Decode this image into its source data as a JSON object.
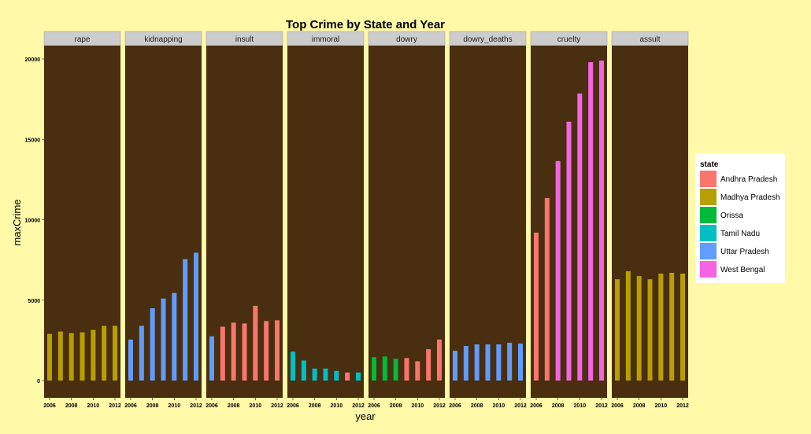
{
  "chart_data": {
    "type": "bar",
    "title": "Top Crime by State and Year",
    "xlabel": "year",
    "ylabel": "maxCrime",
    "ylim": [
      0,
      20000
    ],
    "yticks": [
      0,
      5000,
      10000,
      15000,
      20000
    ],
    "ytick_labels": [
      "0",
      "5000",
      "10000",
      "15000",
      "20000"
    ],
    "x": [
      2006,
      2007,
      2008,
      2009,
      2010,
      2011,
      2012
    ],
    "xticks": [
      2006,
      2008,
      2010,
      2012
    ],
    "xtick_labels": [
      "2006",
      "2008",
      "2010",
      "2012"
    ],
    "legend": {
      "title": "state",
      "placement": "right",
      "entries": [
        {
          "name": "Andhra Pradesh",
          "color": "#f8766d"
        },
        {
          "name": "Madhya Pradesh",
          "color": "#b79f00"
        },
        {
          "name": "Orissa",
          "color": "#00ba38"
        },
        {
          "name": "Tamil Nadu",
          "color": "#00bfc4"
        },
        {
          "name": "Uttar Pradesh",
          "color": "#619cff"
        },
        {
          "name": "West Bengal",
          "color": "#f564e3"
        }
      ]
    },
    "panel_background": "#4a2e10",
    "strip_background": "#cccccc",
    "panels": [
      {
        "crime": "rape",
        "values": [
          2900,
          3050,
          2950,
          3000,
          3150,
          3400,
          3400
        ],
        "states": [
          "Madhya Pradesh",
          "Madhya Pradesh",
          "Madhya Pradesh",
          "Madhya Pradesh",
          "Madhya Pradesh",
          "Madhya Pradesh",
          "Madhya Pradesh"
        ]
      },
      {
        "crime": "kidnapping",
        "values": [
          2550,
          3400,
          4500,
          5100,
          5450,
          7550,
          7950
        ],
        "states": [
          "Uttar Pradesh",
          "Uttar Pradesh",
          "Uttar Pradesh",
          "Uttar Pradesh",
          "Uttar Pradesh",
          "Uttar Pradesh",
          "Uttar Pradesh"
        ]
      },
      {
        "crime": "insult",
        "values": [
          2750,
          3350,
          3600,
          3550,
          4650,
          3700,
          3750
        ],
        "states": [
          "Uttar Pradesh",
          "Andhra Pradesh",
          "Andhra Pradesh",
          "Andhra Pradesh",
          "Andhra Pradesh",
          "Andhra Pradesh",
          "Andhra Pradesh"
        ]
      },
      {
        "crime": "immoral",
        "values": [
          1800,
          1250,
          750,
          750,
          600,
          500,
          500
        ],
        "states": [
          "Tamil Nadu",
          "Tamil Nadu",
          "Tamil Nadu",
          "Tamil Nadu",
          "Tamil Nadu",
          "Andhra Pradesh",
          "Tamil Nadu"
        ]
      },
      {
        "crime": "dowry",
        "values": [
          1450,
          1500,
          1350,
          1400,
          1200,
          1950,
          2550
        ],
        "states": [
          "Orissa",
          "Orissa",
          "Orissa",
          "Andhra Pradesh",
          "Andhra Pradesh",
          "Andhra Pradesh",
          "Andhra Pradesh"
        ]
      },
      {
        "crime": "dowry_deaths",
        "values": [
          1850,
          2150,
          2250,
          2250,
          2250,
          2350,
          2300
        ],
        "states": [
          "Uttar Pradesh",
          "Uttar Pradesh",
          "Uttar Pradesh",
          "Uttar Pradesh",
          "Uttar Pradesh",
          "Uttar Pradesh",
          "Uttar Pradesh"
        ]
      },
      {
        "crime": "cruelty",
        "values": [
          9200,
          11350,
          13650,
          16100,
          17850,
          19800,
          19900
        ],
        "states": [
          "Andhra Pradesh",
          "Andhra Pradesh",
          "West Bengal",
          "West Bengal",
          "West Bengal",
          "West Bengal",
          "West Bengal"
        ]
      },
      {
        "crime": "assult",
        "values": [
          6300,
          6800,
          6500,
          6300,
          6650,
          6700,
          6650
        ],
        "states": [
          "Madhya Pradesh",
          "Madhya Pradesh",
          "Madhya Pradesh",
          "Madhya Pradesh",
          "Madhya Pradesh",
          "Madhya Pradesh",
          "Madhya Pradesh"
        ]
      }
    ]
  }
}
